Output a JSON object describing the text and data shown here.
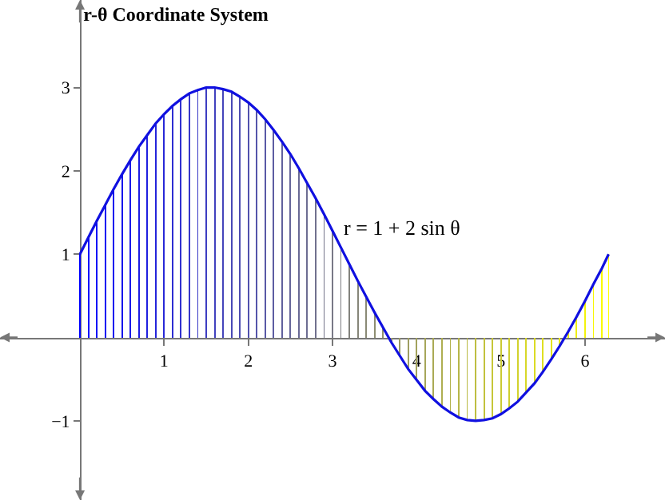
{
  "chart_data": {
    "type": "line",
    "title": "r-θ Coordinate System",
    "x": [
      0,
      0.1,
      0.2,
      0.3,
      0.4,
      0.5,
      0.6,
      0.7,
      0.8,
      0.9,
      1.0,
      1.1,
      1.2,
      1.3,
      1.4,
      1.5,
      1.6,
      1.7,
      1.8,
      1.9,
      2.0,
      2.1,
      2.2,
      2.3,
      2.4,
      2.5,
      2.6,
      2.7,
      2.8,
      2.9,
      3.0,
      3.1,
      3.2,
      3.3,
      3.4,
      3.5,
      3.6,
      3.7,
      3.8,
      3.9,
      4.0,
      4.1,
      4.2,
      4.3,
      4.4,
      4.5,
      4.6,
      4.7,
      4.8,
      4.9,
      5.0,
      5.1,
      5.2,
      5.3,
      5.4,
      5.5,
      5.6,
      5.7,
      5.8,
      5.9,
      6.0,
      6.1,
      6.2,
      6.28
    ],
    "series": [
      {
        "type": "bar",
        "colors": [
          "#0000ff",
          "#0404fb",
          "#0808f7",
          "#0c0cf3",
          "#1010ef",
          "#1414eb",
          "#1818e7",
          "#1c1ce3",
          "#2020df",
          "#2424db",
          "#2828d7",
          "#2d2dd2",
          "#3131ce",
          "#3535ca",
          "#3939c6",
          "#3d3dc2",
          "#4141be",
          "#4545ba",
          "#4949b6",
          "#4d4db2",
          "#5151ae",
          "#5555aa",
          "#5959a6",
          "#5d5da2",
          "#61619e",
          "#65659a",
          "#696996",
          "#6d6d92",
          "#71718e",
          "#75758a",
          "#797986",
          "#7d7d82",
          "#82827d",
          "#868679",
          "#8a8a75",
          "#8e8e71",
          "#92926d",
          "#969669",
          "#9a9a65",
          "#9e9e61",
          "#a2a25d",
          "#a6a659",
          "#aaaa55",
          "#aeae51",
          "#b2b24d",
          "#b6b649",
          "#baba45",
          "#bebe41",
          "#c2c23d",
          "#c6c639",
          "#caca35",
          "#cece31",
          "#d2d22d",
          "#d7d728",
          "#dbdb24",
          "#dfdf20",
          "#e3e31c",
          "#e7e718",
          "#ebeb14",
          "#efef10",
          "#f3f30c",
          "#f7f708",
          "#fbfb04",
          "#ffff00"
        ],
        "values": [
          1.0,
          1.2,
          1.4,
          1.59,
          1.78,
          1.96,
          2.13,
          2.29,
          2.43,
          2.57,
          2.68,
          2.78,
          2.86,
          2.93,
          2.97,
          3.0,
          3.0,
          2.98,
          2.95,
          2.89,
          2.82,
          2.73,
          2.62,
          2.49,
          2.35,
          2.2,
          2.03,
          1.85,
          1.67,
          1.48,
          1.28,
          1.08,
          0.88,
          0.68,
          0.49,
          0.3,
          0.12,
          -0.06,
          -0.22,
          -0.38,
          -0.51,
          -0.64,
          -0.74,
          -0.83,
          -0.9,
          -0.96,
          -0.99,
          -1.0,
          -0.99,
          -0.97,
          -0.92,
          -0.85,
          -0.77,
          -0.66,
          -0.55,
          -0.41,
          -0.26,
          -0.1,
          0.07,
          0.25,
          0.44,
          0.64,
          0.83,
          1.0
        ]
      },
      {
        "color": "#1010e0",
        "values": [
          1.0,
          1.2,
          1.4,
          1.59,
          1.78,
          1.96,
          2.13,
          2.29,
          2.43,
          2.57,
          2.68,
          2.78,
          2.86,
          2.93,
          2.97,
          3.0,
          3.0,
          2.98,
          2.95,
          2.89,
          2.82,
          2.73,
          2.62,
          2.49,
          2.35,
          2.2,
          2.03,
          1.85,
          1.67,
          1.48,
          1.28,
          1.08,
          0.88,
          0.68,
          0.49,
          0.3,
          0.12,
          -0.06,
          -0.22,
          -0.38,
          -0.51,
          -0.64,
          -0.74,
          -0.83,
          -0.9,
          -0.96,
          -0.99,
          -1.0,
          -0.99,
          -0.97,
          -0.92,
          -0.85,
          -0.77,
          -0.66,
          -0.55,
          -0.41,
          -0.26,
          -0.1,
          0.07,
          0.25,
          0.44,
          0.64,
          0.83,
          1.0
        ]
      }
    ],
    "annotations": [
      "r = 1 + 2 sin θ"
    ],
    "xlim": [
      -0.95,
      6.95
    ],
    "ylim": [
      -1.95,
      4.05
    ],
    "xticks": [
      1,
      2,
      3,
      4,
      5,
      6
    ],
    "yticks": [
      {
        "value": -1,
        "label": "−1"
      },
      1,
      2,
      3
    ],
    "grid": false,
    "marker": "none",
    "line_style": "solid"
  }
}
